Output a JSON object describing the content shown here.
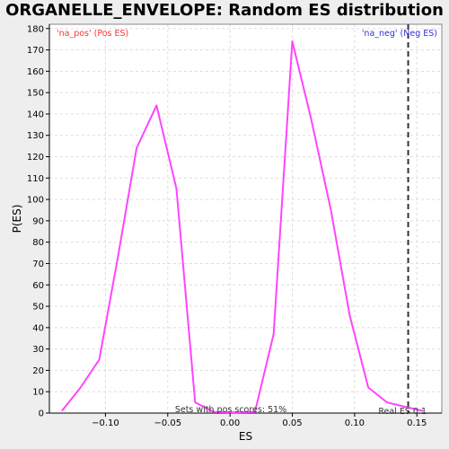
{
  "title": "ORGANELLE_ENVELOPE: Random ES distribution",
  "colors": {
    "pos_label": "#ff3333",
    "neg_label": "#3333cc",
    "line": "#ff44ff",
    "real_es_line": "#333333",
    "grid": "#dddddd",
    "plot_bg": "#ffffff"
  },
  "annotations": {
    "pos_label": "'na_pos' (Pos ES)",
    "neg_label": "'na_neg' (Neg ES)",
    "pos_scores": "Sets with pos scores: 51%",
    "real_es": "Real ES 0.1"
  },
  "chart_data": {
    "type": "line",
    "title": "ORGANELLE_ENVELOPE: Random ES distribution",
    "xlabel": "ES",
    "ylabel": "P(ES)",
    "xlim": [
      -0.145,
      0.17
    ],
    "ylim": [
      0,
      182
    ],
    "xticks": [
      -0.1,
      -0.05,
      0.0,
      0.05,
      0.1,
      0.15
    ],
    "xtick_labels": [
      "−0.10",
      "−0.05",
      "0.00",
      "0.05",
      "0.10",
      "0.15"
    ],
    "yticks": [
      0,
      10,
      20,
      30,
      40,
      50,
      60,
      70,
      80,
      90,
      100,
      110,
      120,
      130,
      140,
      150,
      160,
      170,
      180
    ],
    "grid": true,
    "series": [
      {
        "x": [
          -0.135,
          -0.12,
          -0.105,
          -0.09,
          -0.075,
          -0.059,
          -0.043,
          -0.028,
          -0.013,
          0.004,
          0.02,
          0.035,
          0.05,
          0.065,
          0.081,
          0.096,
          0.111,
          0.126,
          0.14,
          0.155
        ],
        "y": [
          1,
          12,
          25,
          73,
          124,
          144,
          105,
          5,
          0.5,
          0.3,
          0.5,
          37,
          174,
          138,
          95,
          46,
          12,
          5,
          3,
          1
        ]
      }
    ],
    "real_es": 0.143
  }
}
